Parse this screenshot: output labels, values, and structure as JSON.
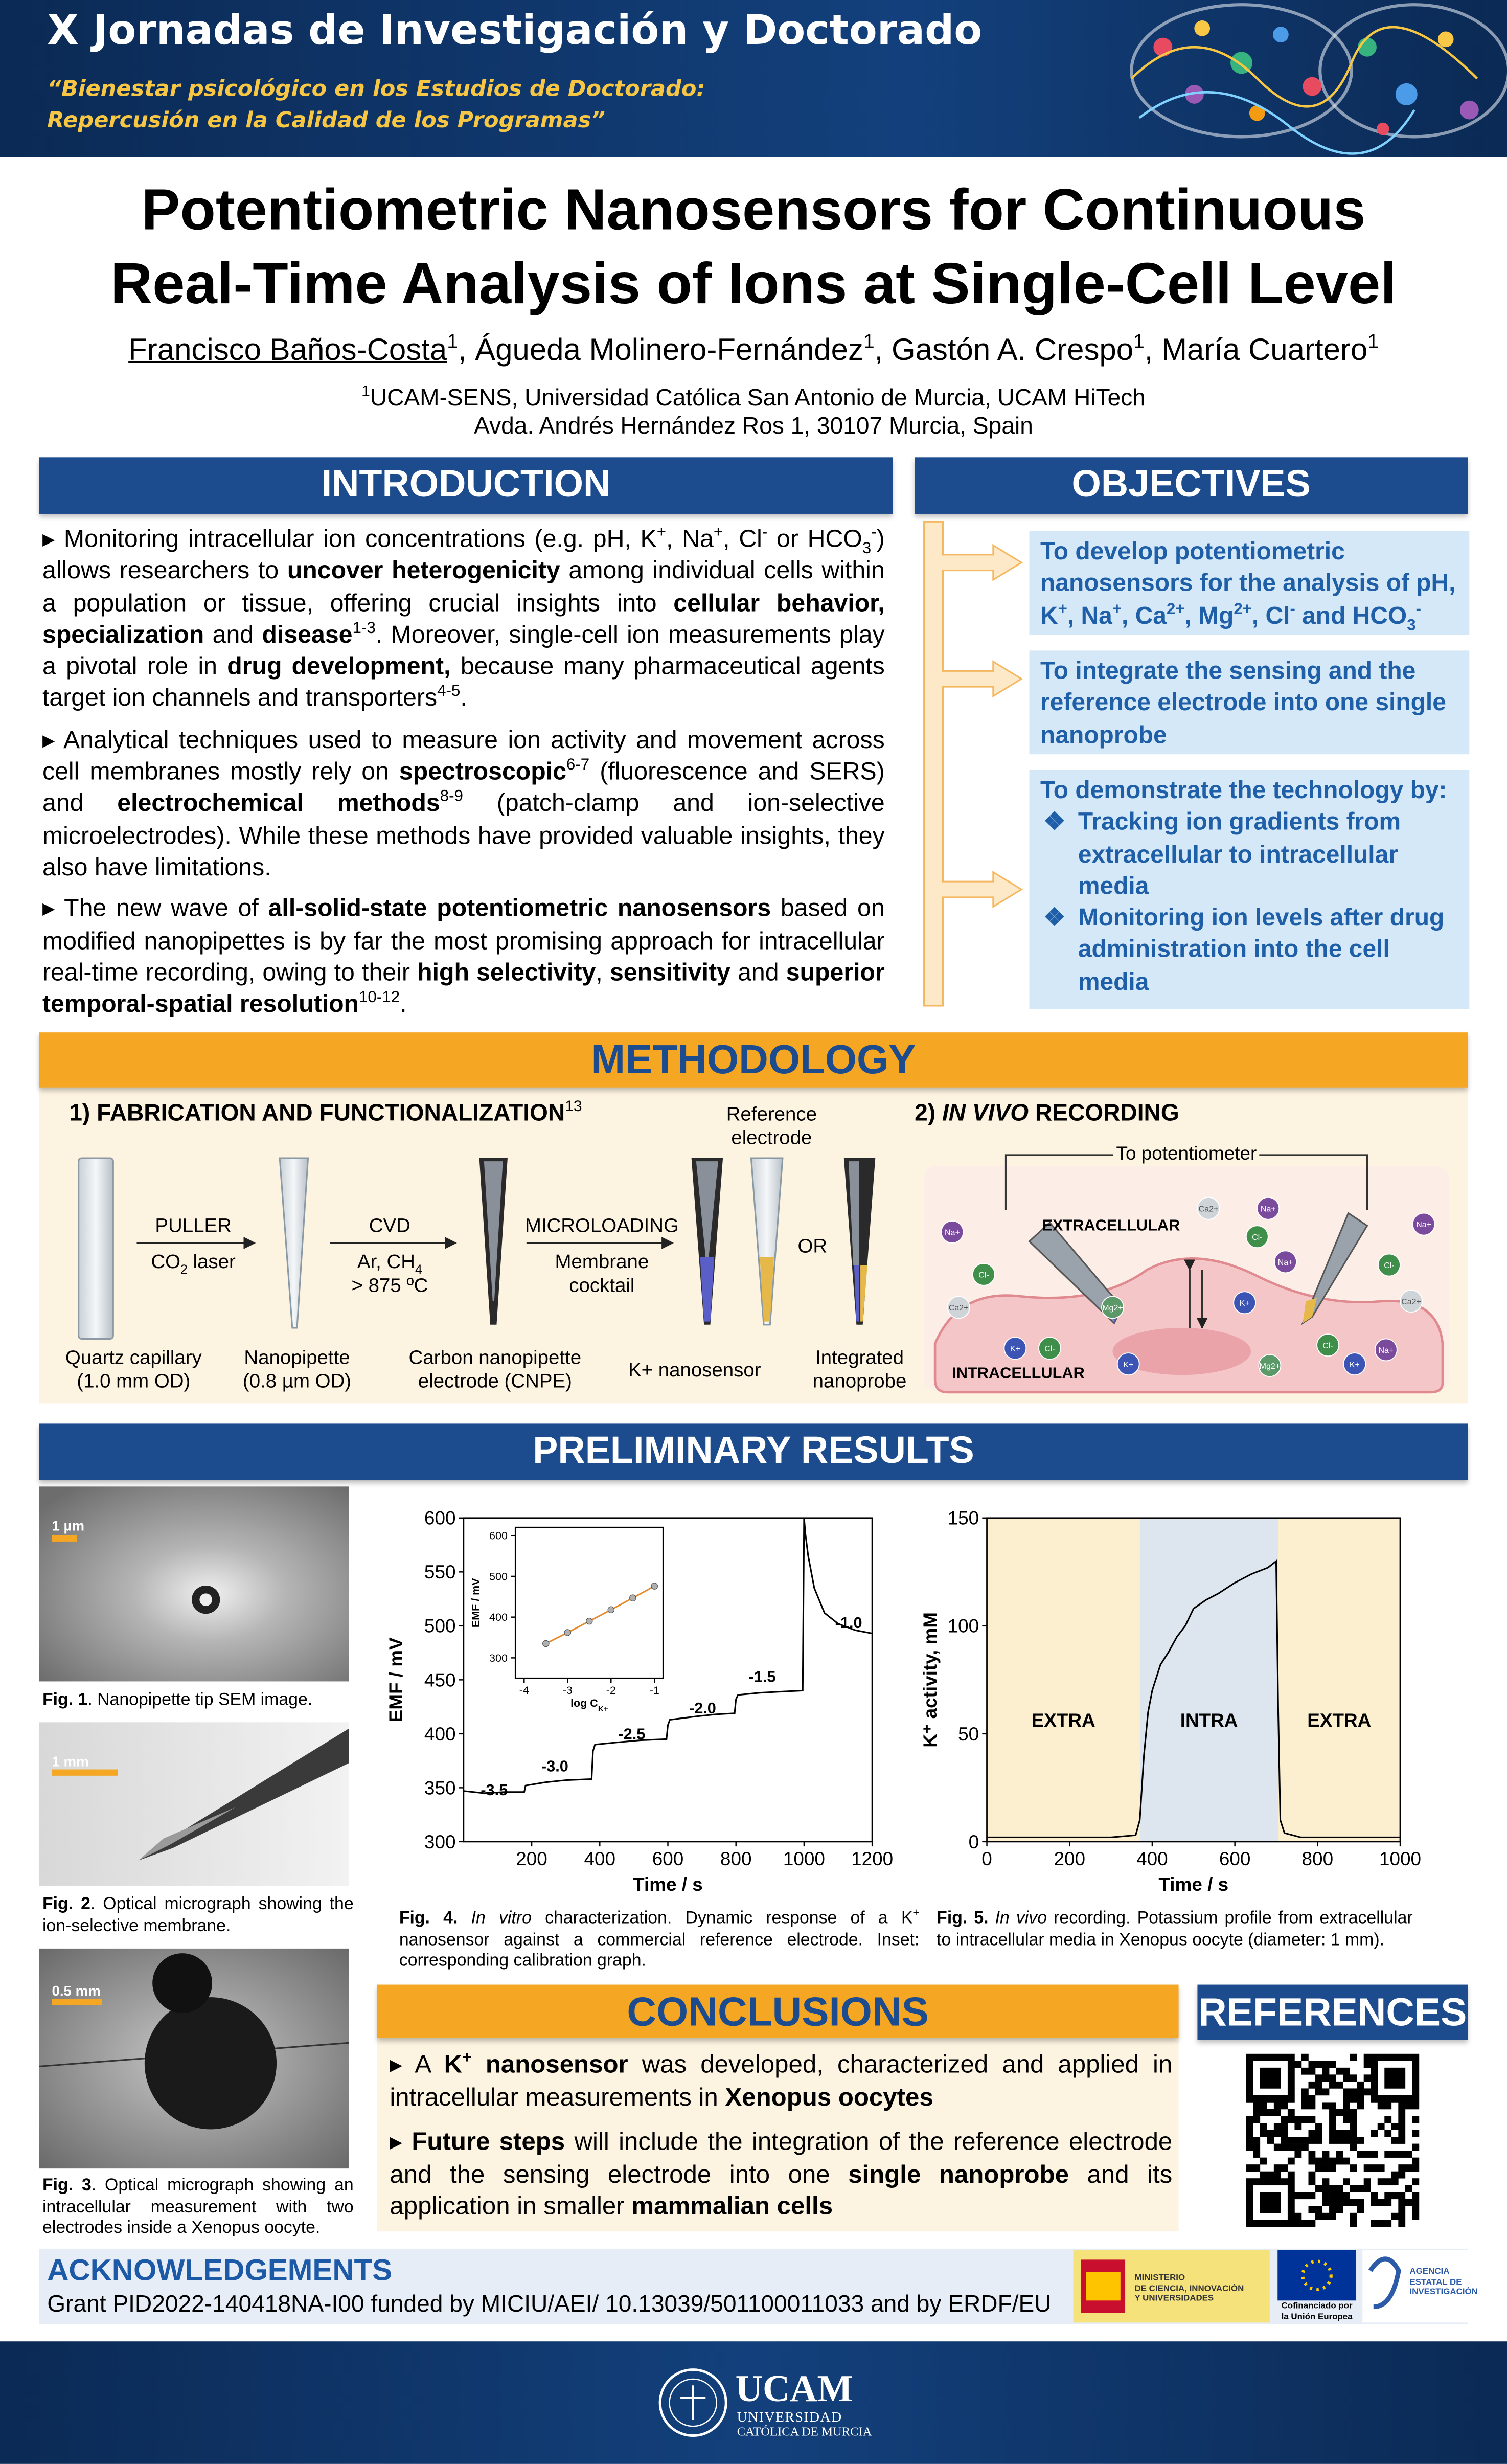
{
  "header": {
    "event": "X Jornadas de Investigación y Doctorado",
    "subtitle": [
      "“Bienestar psicológico en los Estudios de Doctorado:",
      "Repercusión en la Calidad de los Programas”"
    ]
  },
  "title": {
    "lines": [
      "Potentiometric Nanosensors for Continuous",
      "Real-Time Analysis of Ions at Single-Cell Level"
    ],
    "authors": [
      [
        "u",
        "Francisco Baños-Costa"
      ],
      [
        "sup",
        "1"
      ],
      ", Águeda Molinero-Fernández",
      [
        "sup",
        "1"
      ],
      ", Gastón A. Crespo",
      [
        "sup",
        "1"
      ],
      ", María Cuartero",
      [
        "sup",
        "1"
      ]
    ],
    "affiliation": [
      [
        [
          "sup",
          "1"
        ],
        "UCAM-SENS, Universidad Católica San Antonio de Murcia, UCAM HiTech"
      ],
      [
        "Avda. Andrés Hernández Ros 1, 30107 Murcia, Spain"
      ]
    ]
  },
  "introduction": {
    "heading": "INTRODUCTION",
    "items": [
      [
        "Monitoring intracellular ion concentrations (e.g. pH, K",
        [
          "sup",
          "+"
        ],
        ", Na",
        [
          "sup",
          "+"
        ],
        ", Cl",
        [
          "sup",
          "-"
        ],
        " or HCO",
        [
          "sub",
          "3"
        ],
        [
          "sup",
          "-"
        ],
        ") allows researchers to ",
        [
          "b",
          "uncover heterogenicity"
        ],
        " among individual cells within a population or tissue, offering crucial insights into ",
        [
          "b",
          "cellular behavior,  specialization"
        ],
        " and ",
        [
          "b",
          "disease"
        ],
        [
          "sup",
          "1-3"
        ],
        ". Moreover, single-cell ion measurements play a pivotal role in ",
        [
          "b",
          "drug development,"
        ],
        " because many pharmaceutical agents target ion channels and transporters",
        [
          "sup",
          "4-5"
        ],
        "."
      ],
      [
        "Analytical techniques used to measure ion activity and movement across cell membranes mostly rely on ",
        [
          "b",
          "spectroscopic"
        ],
        [
          "sup",
          "6-7"
        ],
        " (fluorescence and SERS) and ",
        [
          "b",
          "electrochemical methods"
        ],
        [
          "sup",
          "8-9"
        ],
        " (patch-clamp and ion-selective microelectrodes). While these methods have provided valuable insights, they also have limitations."
      ],
      [
        "The new wave of ",
        [
          "b",
          "all-solid-state potentiometric nanosensors"
        ],
        " based on modified nanopipettes is by far the most promising approach for intracellular real-time recording, owing to their ",
        [
          "b",
          "high selectivity"
        ],
        ", ",
        [
          "b",
          "sensitivity"
        ],
        " and ",
        [
          "b",
          "superior temporal-spatial resolution"
        ],
        [
          "sup",
          "10-12"
        ],
        "."
      ]
    ]
  },
  "objectives": {
    "heading": "OBJECTIVES",
    "items": [
      [
        "To develop potentiometric nanosensors for the analysis of pH, K",
        [
          "sup",
          "+"
        ],
        ", Na",
        [
          "sup",
          "+"
        ],
        ", Ca",
        [
          "sup",
          "2+"
        ],
        ", Mg",
        [
          "sup",
          "2+"
        ],
        ", Cl",
        [
          "sup",
          "-"
        ],
        " and HCO",
        [
          "sub",
          "3"
        ],
        [
          "sup",
          "-"
        ]
      ],
      [
        "To integrate the sensing and the reference electrode into one single nanoprobe"
      ]
    ],
    "demonstrate": {
      "lead": "To demonstrate the technology by:",
      "points": [
        "Tracking ion gradients from extracellular to intracellular media",
        "Monitoring ion levels after drug administration into the cell media"
      ]
    }
  },
  "methodology": {
    "heading": "METHODOLOGY",
    "fabrication_title": [
      [
        "b",
        "1) FABRICATION AND FUNCTIONALIZATION"
      ],
      [
        "sup",
        "13"
      ]
    ],
    "reference_electrode": [
      "Reference",
      "electrode"
    ],
    "steps": [
      {
        "name": "PULLER",
        "lines": [
          [
            "CO",
            [
              "sub",
              "2"
            ],
            " laser"
          ]
        ]
      },
      {
        "name": "CVD",
        "lines": [
          [
            "Ar, CH",
            [
              "sub",
              "4"
            ]
          ],
          [
            "> 875 ºC"
          ]
        ]
      },
      {
        "name": "MICROLOADING",
        "lines": [
          [
            "Membrane"
          ],
          [
            "cocktail"
          ]
        ]
      }
    ],
    "or": "OR",
    "products": [
      [
        "Quartz capillary",
        "(1.0 mm OD)"
      ],
      [
        "Nanopipette",
        "(0.8 µm OD)"
      ],
      [
        "Carbon nanopipette",
        "electrode (CNPE)"
      ],
      [
        "K+ nanosensor"
      ],
      [
        "Integrated",
        "nanoprobe"
      ]
    ],
    "in_vivo_title": [
      [
        "b",
        "2) "
      ],
      [
        "bi",
        "IN VIVO"
      ],
      [
        "b",
        " RECORDING"
      ]
    ],
    "to_potentiometer": "To potentiometer",
    "extracellular": "EXTRACELLULAR",
    "intracellular": "INTRACELLULAR",
    "ions": [
      {
        "label": "Na+",
        "color": "#7a4b9c"
      },
      {
        "label": "Cl-",
        "color": "#3f8f4a"
      },
      {
        "label": "Ca2+",
        "color": "#cfd4d8"
      },
      {
        "label": "Ca2+",
        "color": "#cfd4d8"
      },
      {
        "label": "Na+",
        "color": "#7a4b9c"
      },
      {
        "label": "Cl-",
        "color": "#3f8f4a"
      },
      {
        "label": "Na+",
        "color": "#7a4b9c"
      },
      {
        "label": "Mg2+",
        "color": "#5b9a68"
      },
      {
        "label": "K+",
        "color": "#3c55b5"
      },
      {
        "label": "Cl-",
        "color": "#3f8f4a"
      },
      {
        "label": "Na+",
        "color": "#7a4b9c"
      },
      {
        "label": "Ca2+",
        "color": "#cfd4d8"
      },
      {
        "label": "K+",
        "color": "#3c55b5"
      },
      {
        "label": "Cl-",
        "color": "#3f8f4a"
      },
      {
        "label": "K+",
        "color": "#3c55b5"
      },
      {
        "label": "Mg2+",
        "color": "#5b9a68"
      },
      {
        "label": "Cl-",
        "color": "#3f8f4a"
      },
      {
        "label": "Na+",
        "color": "#7a4b9c"
      },
      {
        "label": "K+",
        "color": "#3c55b5"
      }
    ]
  },
  "results": {
    "heading": "PRELIMINARY RESULTS",
    "micrographs": [
      {
        "scale": "1 µm",
        "caption": [
          [
            "b",
            "Fig. 1"
          ],
          ". Nanopipette tip SEM image."
        ]
      },
      {
        "scale": "1 mm",
        "caption": [
          [
            "b",
            "Fig. 2"
          ],
          ". Optical micrograph showing the ion-selective membrane."
        ]
      },
      {
        "scale": "0.5 mm",
        "caption": [
          [
            "b",
            "Fig. 3"
          ],
          ". Optical micrograph showing an intracellular measurement with two electrodes inside a Xenopus oocyte."
        ]
      }
    ],
    "plot_captions": [
      [
        [
          "b",
          "Fig. 4."
        ],
        " ",
        [
          "i",
          "In vitro"
        ],
        " characterization. Dynamic response of a K",
        [
          "sup",
          "+"
        ],
        " nanosensor against a commercial reference electrode. Inset: corresponding calibration graph."
      ],
      [
        [
          "b",
          "Fig. 5."
        ],
        " ",
        [
          "i",
          "In vivo"
        ],
        " recording. Potassium profile from extracellular to intracellular media in Xenopus oocyte (diameter: 1 mm)."
      ]
    ]
  },
  "chart_data": [
    {
      "type": "line",
      "x_label": "Time / s",
      "y_label": "EMF / mV",
      "xlim": [
        0,
        1200
      ],
      "xticks": [
        200,
        400,
        600,
        800,
        1000,
        1200
      ],
      "ylim": [
        300,
        600
      ],
      "yticks": [
        300,
        350,
        400,
        450,
        500,
        550,
        600
      ],
      "series": [
        {
          "color": "#000000",
          "x": [
            0,
            60,
            120,
            178,
            182,
            240,
            300,
            376,
            380,
            386,
            450,
            520,
            596,
            600,
            606,
            680,
            740,
            796,
            800,
            806,
            870,
            930,
            996,
            1000,
            1004,
            1012,
            1030,
            1060,
            1100,
            1150,
            1200
          ],
          "values": [
            347,
            345,
            346,
            346,
            352,
            355,
            357,
            358,
            384,
            390,
            392,
            394,
            395,
            408,
            413,
            416,
            418,
            419,
            432,
            436,
            438,
            439,
            440,
            600,
            585,
            565,
            535,
            512,
            502,
            496,
            493
          ]
        }
      ],
      "annotations": [
        {
          "text": "-3.5",
          "x": 90,
          "y": 343
        },
        {
          "text": "-3.0",
          "x": 268,
          "y": 365
        },
        {
          "text": "-2.5",
          "x": 494,
          "y": 395
        },
        {
          "text": "-2.0",
          "x": 702,
          "y": 419
        },
        {
          "text": "-1.5",
          "x": 877,
          "y": 448
        },
        {
          "text": "-1.0",
          "x": 1131,
          "y": 498
        }
      ]
    },
    {
      "type": "line",
      "x_label": "log C",
      "x_label_sub": "K+",
      "y_label": "EMF / mV",
      "xlim": [
        -4.2,
        -0.8
      ],
      "xticks": [
        -4,
        -3,
        -2,
        -1
      ],
      "ylim": [
        250,
        620
      ],
      "yticks": [
        300,
        400,
        500,
        600
      ],
      "series": [
        {
          "color": "#e8892b",
          "marker_color": "#b0b0b0",
          "x": [
            -3.5,
            -3,
            -2.5,
            -2,
            -1.5,
            -1
          ],
          "values": [
            335,
            362,
            390,
            418,
            447,
            476
          ]
        }
      ]
    },
    {
      "type": "line",
      "x_label": "Time / s",
      "y_label": "K⁺ activity, mM",
      "xlim": [
        0,
        1000
      ],
      "xticks": [
        0,
        200,
        400,
        600,
        800,
        1000
      ],
      "ylim": [
        0,
        150
      ],
      "yticks": [
        0,
        50,
        100,
        150
      ],
      "regions": [
        {
          "label": "EXTRA",
          "x0": 0,
          "x1": 370,
          "color": "#fbefd0"
        },
        {
          "label": "INTRA",
          "x0": 370,
          "x1": 705,
          "color": "#dde6ef"
        },
        {
          "label": "EXTRA",
          "x0": 705,
          "x1": 1000,
          "color": "#fbefd0"
        }
      ],
      "series": [
        {
          "color": "#000000",
          "x": [
            0,
            100,
            200,
            300,
            360,
            370,
            380,
            390,
            400,
            420,
            440,
            460,
            480,
            500,
            530,
            560,
            600,
            640,
            680,
            700,
            705,
            710,
            720,
            760,
            800,
            900,
            1000
          ],
          "values": [
            2,
            2,
            2,
            2,
            3,
            10,
            40,
            60,
            70,
            82,
            88,
            95,
            100,
            108,
            112,
            115,
            120,
            124,
            127,
            130,
            60,
            10,
            4,
            2,
            2,
            2,
            2
          ]
        }
      ]
    }
  ],
  "conclusions": {
    "heading": "CONCLUSIONS",
    "items": [
      [
        "A ",
        [
          "b",
          "K"
        ],
        [
          "bsup",
          "+"
        ],
        [
          "b",
          " nanosensor"
        ],
        " was developed, characterized and applied in intracellular measurements in ",
        [
          "b",
          "Xenopus oocytes"
        ]
      ],
      [
        [
          "b",
          "Future steps"
        ],
        " will include the integration of the reference electrode and the sensing electrode into one ",
        [
          "b",
          "single nanoprobe"
        ],
        " and its application in smaller ",
        [
          "b",
          "mammalian cells"
        ]
      ]
    ]
  },
  "references": {
    "heading": "REFERENCES"
  },
  "acknowledgements": {
    "heading": "ACKNOWLEDGEMENTS",
    "text": "Grant PID2022-140418NA-I00 funded by MICIU/AEI/ 10.13039/501100011033 and by ERDF/EU",
    "ministry": [
      "MINISTERIO",
      "DE CIENCIA, INNOVACIÓN",
      "Y UNIVERSIDADES"
    ],
    "eu": [
      "Cofinanciado por",
      "la Unión Europea"
    ],
    "agency": [
      "AGENCIA",
      "ESTATAL DE",
      "INVESTIGACIÓN"
    ]
  },
  "footer": {
    "name": "UCAM",
    "lines": [
      "UNIVERSIDAD",
      "CATÓLICA DE MURCIA"
    ]
  }
}
